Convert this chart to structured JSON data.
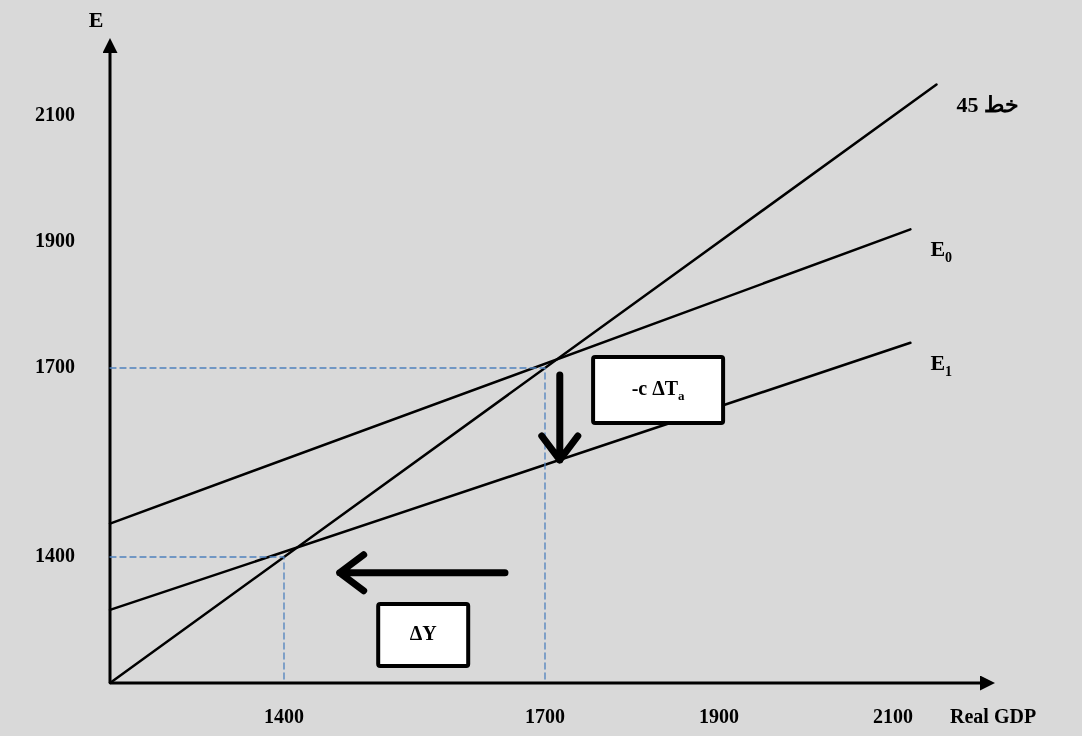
{
  "chart_data": {
    "type": "line",
    "xlabel": "Real GDP",
    "ylabel": "E",
    "xlim": [
      1200,
      2200
    ],
    "ylim": [
      1200,
      2200
    ],
    "xticks": [
      1400,
      1700,
      1900,
      2100
    ],
    "yticks": [
      1400,
      1700,
      1900,
      2100
    ],
    "grid": false,
    "marker": "none",
    "series": [
      {
        "name": "خط 45",
        "color": "#000000",
        "x": [
          1200,
          2150
        ],
        "values": [
          1200,
          2150
        ]
      },
      {
        "name": "E$_{0}$",
        "color": "#000000",
        "x": [
          1200,
          2120
        ],
        "values": [
          1453,
          1920
        ]
      },
      {
        "name": "E$_{1}$",
        "color": "#000000",
        "x": [
          1200,
          2120
        ],
        "values": [
          1316,
          1740
        ]
      },
      {
        "color": "#4f81bd",
        "line_style": "dashed",
        "x": [
          1200,
          1700,
          1700
        ],
        "values": [
          1700,
          1700,
          1200
        ]
      },
      {
        "color": "#4f81bd",
        "line_style": "dashed",
        "x": [
          1200,
          1400,
          1400
        ],
        "values": [
          1400,
          1400,
          1200
        ]
      }
    ],
    "annotations": [
      "-c ΔT$_{a}$",
      "ΔY"
    ]
  }
}
